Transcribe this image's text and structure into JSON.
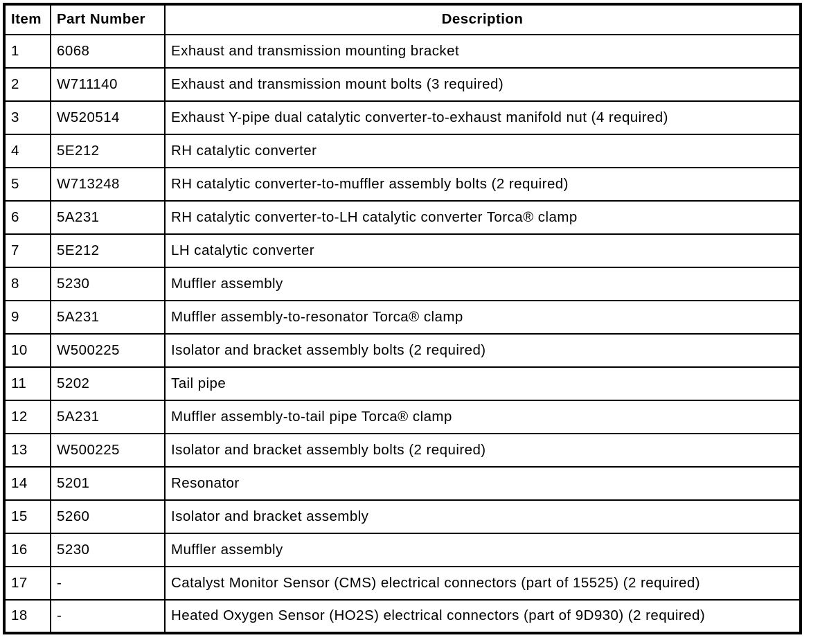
{
  "colors": {
    "background": "#ffffff",
    "border": "#000000",
    "text": "#000000"
  },
  "table": {
    "headers": [
      "Item",
      "Part Number",
      "Description"
    ],
    "rows": [
      {
        "item": "1",
        "part_number": "6068",
        "description": "Exhaust and transmission mounting bracket"
      },
      {
        "item": "2",
        "part_number": "W711140",
        "description": "Exhaust and transmission mount bolts (3 required)"
      },
      {
        "item": "3",
        "part_number": "W520514",
        "description": "Exhaust Y-pipe dual catalytic converter-to-exhaust manifold nut (4 required)"
      },
      {
        "item": "4",
        "part_number": "5E212",
        "description": "RH catalytic converter"
      },
      {
        "item": "5",
        "part_number": "W713248",
        "description": "RH catalytic converter-to-muffler assembly bolts (2 required)"
      },
      {
        "item": "6",
        "part_number": "5A231",
        "description": "RH catalytic converter-to-LH catalytic converter Torca® clamp"
      },
      {
        "item": "7",
        "part_number": "5E212",
        "description": "LH catalytic converter"
      },
      {
        "item": "8",
        "part_number": "5230",
        "description": "Muffler assembly"
      },
      {
        "item": "9",
        "part_number": "5A231",
        "description": "Muffler assembly-to-resonator Torca® clamp"
      },
      {
        "item": "10",
        "part_number": "W500225",
        "description": "Isolator and bracket assembly bolts (2 required)"
      },
      {
        "item": "11",
        "part_number": "5202",
        "description": "Tail pipe"
      },
      {
        "item": "12",
        "part_number": "5A231",
        "description": "Muffler assembly-to-tail pipe Torca® clamp"
      },
      {
        "item": "13",
        "part_number": "W500225",
        "description": "Isolator and bracket assembly bolts (2 required)"
      },
      {
        "item": "14",
        "part_number": "5201",
        "description": "Resonator"
      },
      {
        "item": "15",
        "part_number": "5260",
        "description": "Isolator and bracket assembly"
      },
      {
        "item": "16",
        "part_number": "5230",
        "description": "Muffler assembly"
      },
      {
        "item": "17",
        "part_number": "-",
        "description": "Catalyst Monitor Sensor (CMS) electrical connectors (part of 15525) (2 required)"
      },
      {
        "item": "18",
        "part_number": "-",
        "description": "Heated Oxygen Sensor (HO2S) electrical connectors (part of 9D930) (2 required)"
      }
    ]
  }
}
